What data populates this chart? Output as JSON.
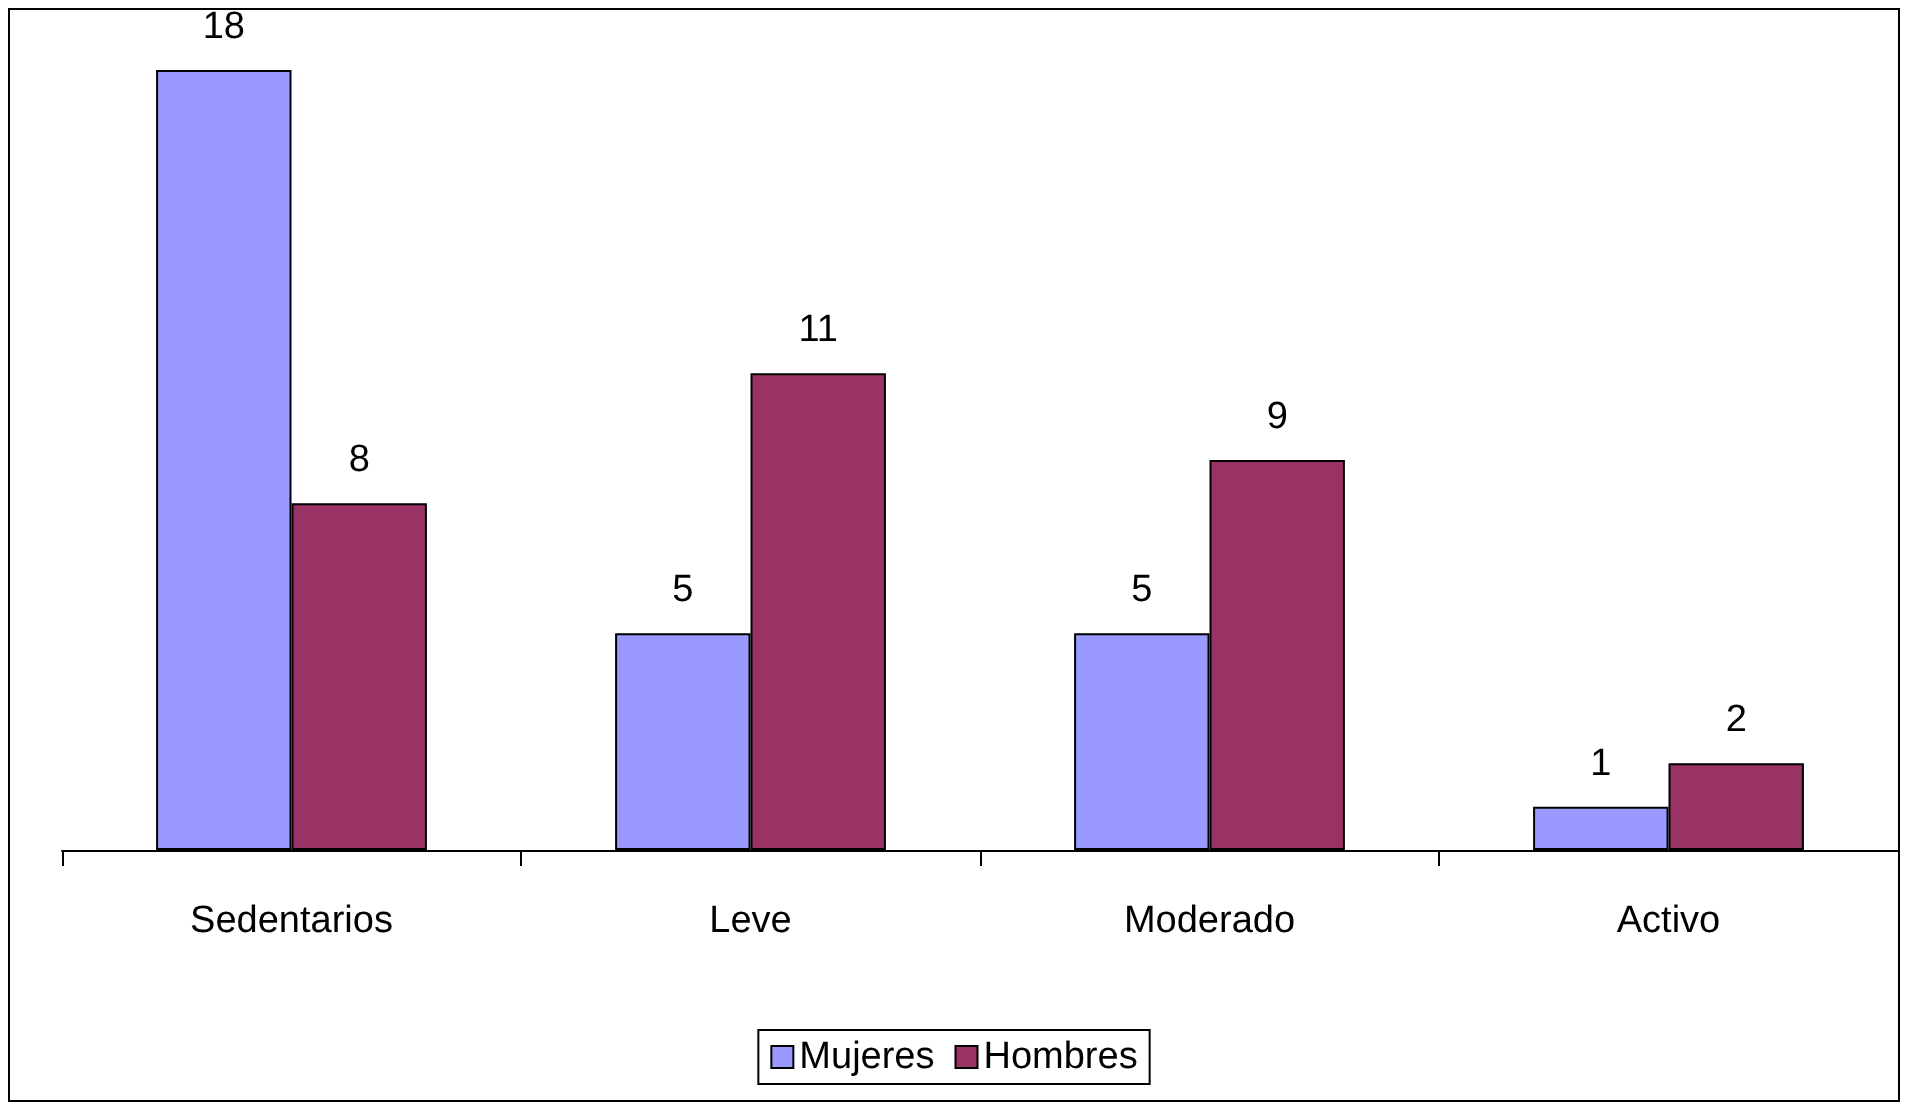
{
  "chart_data": {
    "type": "bar",
    "categories": [
      "Sedentarios",
      "Leve",
      "Moderado",
      "Activo"
    ],
    "series": [
      {
        "name": "Mujeres",
        "color": "#9999ff",
        "values": [
          18,
          5,
          5,
          1
        ]
      },
      {
        "name": "Hombres",
        "color": "#993366",
        "values": [
          8,
          11,
          9,
          2
        ]
      }
    ],
    "data_labels": true,
    "legend": "bottom",
    "grid": false
  }
}
